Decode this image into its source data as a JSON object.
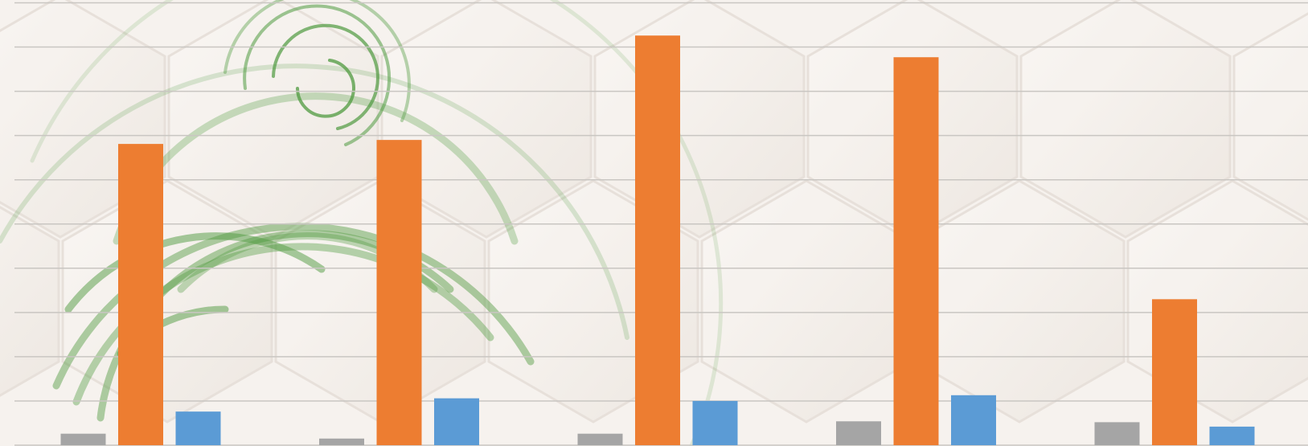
{
  "chart_data": {
    "type": "bar",
    "categories": [
      "",
      "",
      "",
      "",
      ""
    ],
    "series": [
      {
        "color": "#a5a5a5",
        "values": [
          2.6,
          1.5,
          2.6,
          5.4,
          5.2
        ]
      },
      {
        "color": "#ed7d31",
        "values": [
          68.1,
          69.0,
          92.6,
          87.7,
          33.0
        ]
      },
      {
        "color": "#5b9bd5",
        "values": [
          7.6,
          10.6,
          10.0,
          11.3,
          4.2
        ]
      }
    ],
    "ylim": [
      0,
      100
    ],
    "grid": true,
    "legend": "none",
    "colors": {
      "gridline": "#c9c6c2",
      "background": "#f6f2ee",
      "decoration": "#4f9a3f"
    }
  }
}
